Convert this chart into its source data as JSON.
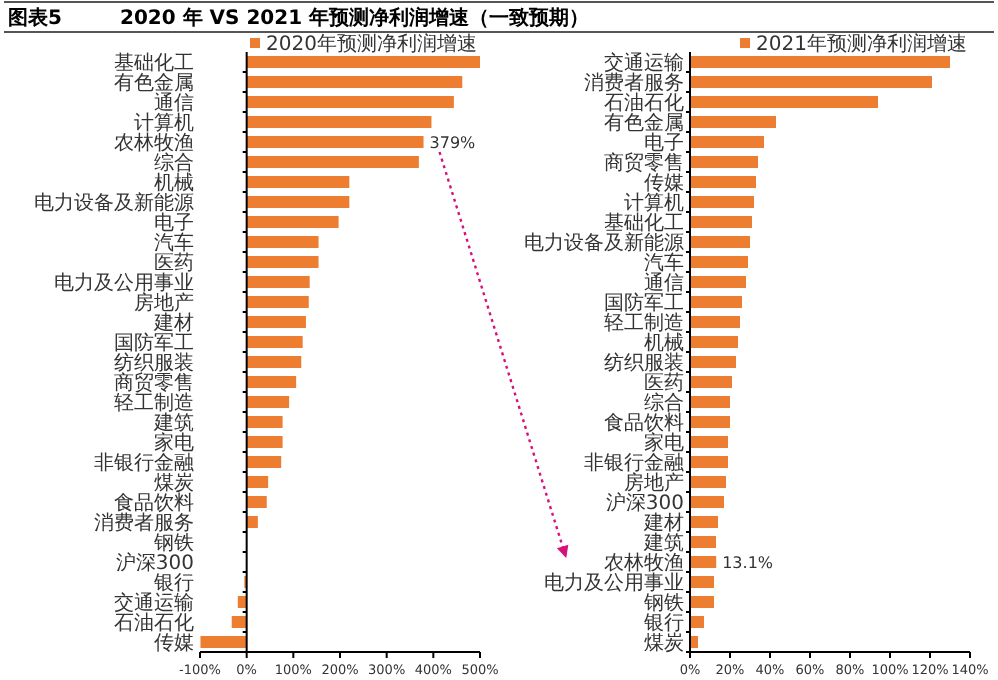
{
  "chart_data": [
    {
      "type": "bar",
      "orientation": "horizontal",
      "title": "图表5",
      "subtitle": "2020 年 VS 2021 年预测净利润增速（一致预期）",
      "categories": [
        "基础化工",
        "有色金属",
        "通信",
        "计算机",
        "农林牧渔",
        "综合",
        "机械",
        "电力设备及新能源",
        "电子",
        "汽车",
        "医药",
        "电力及公用事业",
        "房地产",
        "建材",
        "国防军工",
        "纺织服装",
        "商贸零售",
        "轻工制造",
        "建筑",
        "家电",
        "非银行金融",
        "煤炭",
        "食品饮料",
        "消费者服务",
        "钢铁",
        "沪深300",
        "银行",
        "交通运输",
        "石油石化",
        "传媒"
      ],
      "series": [
        {
          "name": "2020年预测净利润增速",
          "color": "#ed7d31",
          "values": [
            500,
            462,
            444,
            396,
            379,
            369,
            220,
            220,
            197,
            154,
            154,
            135,
            133,
            127,
            120,
            117,
            106,
            91,
            77,
            77,
            74,
            46,
            43,
            24,
            null,
            null,
            -5,
            -19,
            -32,
            -99
          ],
          "value_labels": [
            null,
            null,
            null,
            null,
            "379%",
            null,
            null,
            null,
            null,
            null,
            null,
            null,
            null,
            null,
            null,
            null,
            null,
            null,
            null,
            null,
            null,
            null,
            null,
            null,
            null,
            null,
            null,
            null,
            null,
            null
          ]
        }
      ],
      "xlim": [
        -100,
        500
      ],
      "xticks": [
        {
          "value": -100,
          "label": "-100%"
        },
        {
          "value": 0,
          "label": "0%"
        },
        {
          "value": 100,
          "label": "100%"
        },
        {
          "value": 200,
          "label": "200%"
        },
        {
          "value": 300,
          "label": "300%"
        },
        {
          "value": 400,
          "label": "400%"
        },
        {
          "value": 500,
          "label": "500%"
        }
      ],
      "legend": "top"
    },
    {
      "type": "bar",
      "orientation": "horizontal",
      "categories": [
        "交通运输",
        "消费者服务",
        "石油石化",
        "有色金属",
        "电子",
        "商贸零售",
        "传媒",
        "计算机",
        "基础化工",
        "电力设备及新能源",
        "汽车",
        "通信",
        "国防军工",
        "轻工制造",
        "机械",
        "纺织服装",
        "医药",
        "综合",
        "食品饮料",
        "家电",
        "非银行金融",
        "房地产",
        "沪深300",
        "建材",
        "建筑",
        "农林牧渔",
        "电力及公用事业",
        "钢铁",
        "银行",
        "煤炭"
      ],
      "series": [
        {
          "name": "2021年预测净利润增速",
          "color": "#ed7d31",
          "values": [
            130,
            121,
            94,
            43,
            37,
            34,
            33,
            32,
            31,
            30,
            29,
            28,
            26,
            25,
            24,
            23,
            21,
            20,
            20,
            19,
            19,
            18,
            17,
            14,
            13,
            13.1,
            12,
            12,
            7,
            4
          ],
          "value_labels": [
            null,
            null,
            null,
            null,
            null,
            null,
            null,
            null,
            null,
            null,
            null,
            null,
            null,
            null,
            null,
            null,
            null,
            null,
            null,
            null,
            null,
            null,
            null,
            null,
            null,
            "13.1%",
            null,
            null,
            null,
            null
          ]
        }
      ],
      "xlim": [
        0,
        140
      ],
      "xticks": [
        {
          "value": 0,
          "label": "0%"
        },
        {
          "value": 20,
          "label": "20%"
        },
        {
          "value": 40,
          "label": "40%"
        },
        {
          "value": 60,
          "label": "60%"
        },
        {
          "value": 80,
          "label": "80%"
        },
        {
          "value": 100,
          "label": "100%"
        },
        {
          "value": 120,
          "label": "120%"
        },
        {
          "value": 140,
          "label": "140%"
        }
      ],
      "legend": "top"
    }
  ]
}
